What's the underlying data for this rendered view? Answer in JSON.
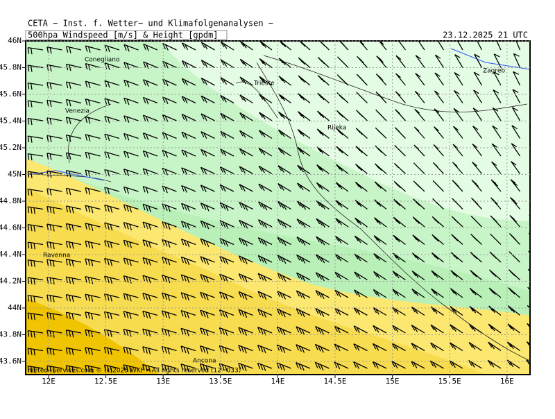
{
  "header": {
    "institute": "CETA − Inst. f. Wetter− und Klimafolgenanalysen −",
    "product": "500hpa_Windspeed_[m/s]_&_Height_[gpdm]",
    "valid_time": "23.12.2025 21 UTC"
  },
  "axes": {
    "x_labels": [
      "12E",
      "12.5E",
      "13E",
      "13.5E",
      "14E",
      "14.5E",
      "15E",
      "15.5E",
      "16E"
    ],
    "y_labels": [
      "46N",
      "45.8N",
      "45.6N",
      "45.4N",
      "45.2N",
      "45N",
      "44.8N",
      "44.6N",
      "44.4N",
      "44.2N",
      "44N",
      "43.8N",
      "43.6N"
    ]
  },
  "cities": [
    {
      "name": "Conegliano"
    },
    {
      "name": "Trieste"
    },
    {
      "name": "Venezia"
    },
    {
      "name": "Rijeka"
    },
    {
      "name": "Zagreb"
    },
    {
      "name": "Ravenna"
    },
    {
      "name": "Ancona"
    }
  ],
  "copyright": "meteo−services.com © (c)2025 WKF • All rights reserved (12−033)"
}
